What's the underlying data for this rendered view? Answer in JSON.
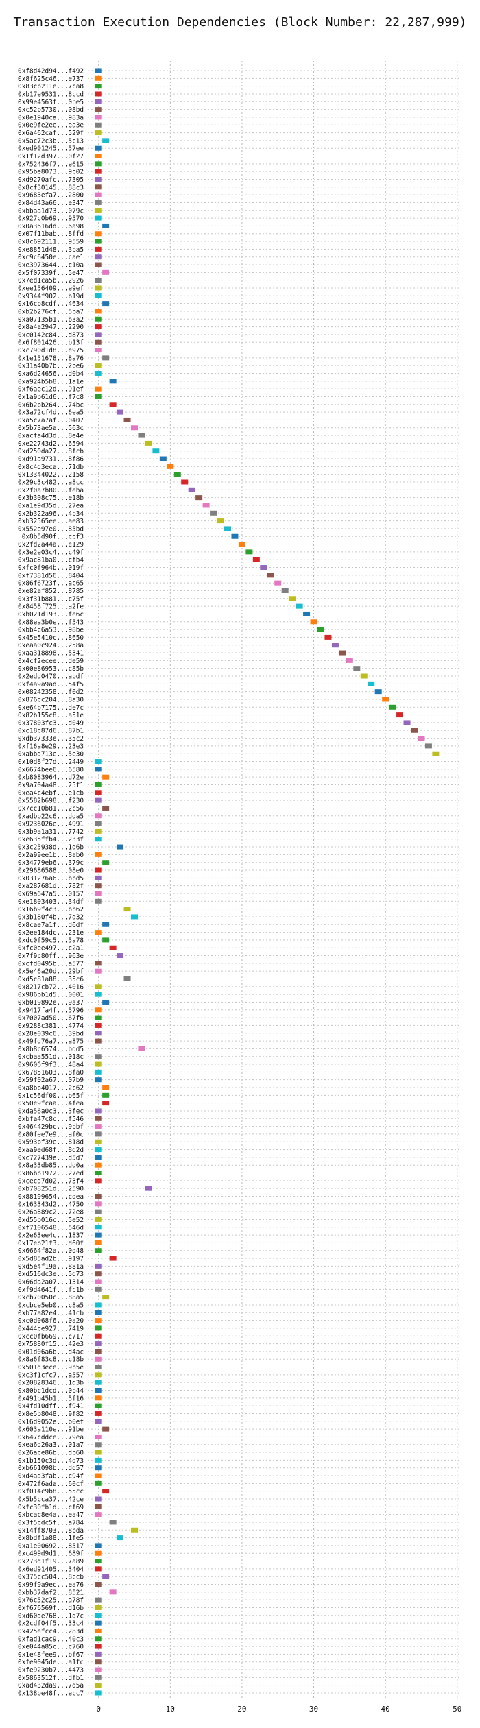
{
  "chart_data": {
    "type": "gantt",
    "title": "Transaction Execution Dependencies (Block Number: 22,287,999)",
    "xlabel": "",
    "ylabel": "",
    "xlim": [
      -1.5,
      50.5
    ],
    "xticks": [
      0,
      10,
      20,
      30,
      40,
      50
    ],
    "grid": true,
    "legend": "none",
    "colors": [
      "#1f77b4",
      "#ff7f0e",
      "#2ca02c",
      "#d62728",
      "#9467bd",
      "#8c564b",
      "#e377c2",
      "#7f7f7f",
      "#bcbd22",
      "#17becf"
    ],
    "transactions": [
      {
        "hash": "0xf8d42d94...f492",
        "start": 0
      },
      {
        "hash": "0x8f625c46...e737",
        "start": 0
      },
      {
        "hash": "0x83cb211e...7ca8",
        "start": 0
      },
      {
        "hash": "0xb17e9531...8ccd",
        "start": 0
      },
      {
        "hash": "0x99e4563f...0be5",
        "start": 0
      },
      {
        "hash": "0xc52b5730...08bd",
        "start": 0
      },
      {
        "hash": "0x0e1940ca...983a",
        "start": 0
      },
      {
        "hash": "0x0e9fe2ee...ea3e",
        "start": 0
      },
      {
        "hash": "0x6a462caf...529f",
        "start": 0
      },
      {
        "hash": "0x5ac72c3b...5c13",
        "start": 1
      },
      {
        "hash": "0xed901245...57ee",
        "start": 0
      },
      {
        "hash": "0x1f12d397...0f27",
        "start": 0
      },
      {
        "hash": "0x752436f7...e615",
        "start": 0
      },
      {
        "hash": "0x95be8073...9c02",
        "start": 0
      },
      {
        "hash": "0xd9270afc...7305",
        "start": 0
      },
      {
        "hash": "0x8cf30145...88c3",
        "start": 0
      },
      {
        "hash": "0x9683efa7...2800",
        "start": 0
      },
      {
        "hash": "0x84d43a66...e347",
        "start": 0
      },
      {
        "hash": "0xbbaa1d73...079c",
        "start": 0
      },
      {
        "hash": "0x927c0b69...9570",
        "start": 0
      },
      {
        "hash": "0x0a3616dd...6a98",
        "start": 1
      },
      {
        "hash": "0x07f11bab...8ffd",
        "start": 0
      },
      {
        "hash": "0x8c692111...9559",
        "start": 0
      },
      {
        "hash": "0xe8851d48...3ba5",
        "start": 0
      },
      {
        "hash": "0xc9c6450e...cae1",
        "start": 0
      },
      {
        "hash": "0xe3973644...c10a",
        "start": 0
      },
      {
        "hash": "0x5f07339f...5e47",
        "start": 1
      },
      {
        "hash": "0x7ed1ca5b...2926",
        "start": 0
      },
      {
        "hash": "0xee156409...e9ef",
        "start": 0
      },
      {
        "hash": "0x9344f902...b19d",
        "start": 0
      },
      {
        "hash": "0x16cb8cdf...4634",
        "start": 1
      },
      {
        "hash": "0xb2b276cf...5ba7",
        "start": 0
      },
      {
        "hash": "0xa07135b1...b3a2",
        "start": 0
      },
      {
        "hash": "0x8a4a2947...2290",
        "start": 0
      },
      {
        "hash": "0xc0142c84...d873",
        "start": 0
      },
      {
        "hash": "0x6f801426...b13f",
        "start": 0
      },
      {
        "hash": "0xc790d1d8...e975",
        "start": 0
      },
      {
        "hash": "0x1e151678...8a76",
        "start": 1
      },
      {
        "hash": "0x31a40b7b...2be6",
        "start": 0
      },
      {
        "hash": "0xa6d24656...d0b4",
        "start": 0
      },
      {
        "hash": "0xa924b5b8...1a1e",
        "start": 2
      },
      {
        "hash": "0xf6aec12d...91ef",
        "start": 0
      },
      {
        "hash": "0x1a9b61d6...f7c8",
        "start": 0
      },
      {
        "hash": "0x6b2bb264...74bc",
        "start": 2
      },
      {
        "hash": "0x3a72cf4d...6ea5",
        "start": 3
      },
      {
        "hash": "0xa5c7a7af...0407",
        "start": 4
      },
      {
        "hash": "0x5b73ae5a...563c",
        "start": 5
      },
      {
        "hash": "0xacfa4d3d...8e4e",
        "start": 6
      },
      {
        "hash": "0xe22743d2...6594",
        "start": 7
      },
      {
        "hash": "0xd250da27...8fcb",
        "start": 8
      },
      {
        "hash": "0xd91a9731...8f86",
        "start": 9
      },
      {
        "hash": "0x8c4d3eca...71db",
        "start": 10
      },
      {
        "hash": "0x13344022...2158",
        "start": 11
      },
      {
        "hash": "0x29c3c482...a8cc",
        "start": 12
      },
      {
        "hash": "0x2f0a7b80...feba",
        "start": 13
      },
      {
        "hash": "0x3b308c75...e18b",
        "start": 14
      },
      {
        "hash": "0xa1e9d35d...27ea",
        "start": 15
      },
      {
        "hash": "0x2b322a96...4b34",
        "start": 16
      },
      {
        "hash": "0xb32565ee...ae83",
        "start": 17
      },
      {
        "hash": "0x552e97e0...85bd",
        "start": 18
      },
      {
        "hash": "0x8b5d90f...ccf3",
        "start": 19
      },
      {
        "hash": "0x2fd2a44a...e129",
        "start": 20
      },
      {
        "hash": "0x3e2e03c4...c49f",
        "start": 21
      },
      {
        "hash": "0x9ac81ba0...cfb4",
        "start": 22
      },
      {
        "hash": "0xfc0f964b...019f",
        "start": 23
      },
      {
        "hash": "0xf7381d56...8404",
        "start": 24
      },
      {
        "hash": "0x86f6723f...ac65",
        "start": 25
      },
      {
        "hash": "0xe82af852...8785",
        "start": 26
      },
      {
        "hash": "0x3f31b881...c75f",
        "start": 27
      },
      {
        "hash": "0x8458f725...a2fe",
        "start": 28
      },
      {
        "hash": "0xb021d193...fe6c",
        "start": 29
      },
      {
        "hash": "0x88ea3b0e...f543",
        "start": 30
      },
      {
        "hash": "0xbb4c6a53...98be",
        "start": 31
      },
      {
        "hash": "0x45e5410c...8650",
        "start": 32
      },
      {
        "hash": "0xeaa0c924...258a",
        "start": 33
      },
      {
        "hash": "0xaa318898...5341",
        "start": 34
      },
      {
        "hash": "0x4cf2ecee...de59",
        "start": 35
      },
      {
        "hash": "0x00e86953...c85b",
        "start": 36
      },
      {
        "hash": "0x2edd0470...abdf",
        "start": 37
      },
      {
        "hash": "0xf4a9a9ad...54f5",
        "start": 38
      },
      {
        "hash": "0x08242358...f0d2",
        "start": 39
      },
      {
        "hash": "0x876cc204...8a30",
        "start": 40
      },
      {
        "hash": "0xe64b7175...de7c",
        "start": 41
      },
      {
        "hash": "0x82b155c8...a51e",
        "start": 42
      },
      {
        "hash": "0x37803fc3...d049",
        "start": 43
      },
      {
        "hash": "0xc18c87d6...87b1",
        "start": 44
      },
      {
        "hash": "0xdb37333e...35c2",
        "start": 45
      },
      {
        "hash": "0xf16a8e29...23e3",
        "start": 46
      },
      {
        "hash": "0xabbd713e...5e30",
        "start": 47
      },
      {
        "hash": "0x10d8f27d...2449",
        "start": 0
      },
      {
        "hash": "0x6674bee6...6580",
        "start": 0
      },
      {
        "hash": "0xb8083964...d72e",
        "start": 1
      },
      {
        "hash": "0x9a704a48...25f1",
        "start": 0
      },
      {
        "hash": "0xea4c4ebf...e1cb",
        "start": 0
      },
      {
        "hash": "0x5582b698...f230",
        "start": 0
      },
      {
        "hash": "0x7cc10b81...2c56",
        "start": 1
      },
      {
        "hash": "0xadbb22c6...dda5",
        "start": 0
      },
      {
        "hash": "0x9236026e...4991",
        "start": 0
      },
      {
        "hash": "0x3b9a1a31...7742",
        "start": 0
      },
      {
        "hash": "0xe635ffb4...233f",
        "start": 0
      },
      {
        "hash": "0x3c25938d...1d6b",
        "start": 3
      },
      {
        "hash": "0x2a99ee1b...8ab0",
        "start": 0
      },
      {
        "hash": "0x34779eb6...379c",
        "start": 1
      },
      {
        "hash": "0x29686588...08e0",
        "start": 0
      },
      {
        "hash": "0x031276a6...bbd5",
        "start": 0
      },
      {
        "hash": "0xa287681d...782f",
        "start": 0
      },
      {
        "hash": "0x69a647a5...0157",
        "start": 0
      },
      {
        "hash": "0xe1803403...34df",
        "start": 0
      },
      {
        "hash": "0x16b9f4c3...bb62",
        "start": 4
      },
      {
        "hash": "0x3b180f4b...7d32",
        "start": 5
      },
      {
        "hash": "0x8cae7a1f...d6df",
        "start": 1
      },
      {
        "hash": "0x2ee184dc...231e",
        "start": 0
      },
      {
        "hash": "0xdc0f59c5...5a78",
        "start": 1
      },
      {
        "hash": "0xfc0ee497...c2a1",
        "start": 2
      },
      {
        "hash": "0x7f9c80ff...963e",
        "start": 3
      },
      {
        "hash": "0xcfd0495b...a577",
        "start": 0
      },
      {
        "hash": "0x5e46a20d...29bf",
        "start": 0
      },
      {
        "hash": "0xd5c81a88...35c6",
        "start": 4
      },
      {
        "hash": "0x8217cb72...4016",
        "start": 0
      },
      {
        "hash": "0x986bb1d5...0001",
        "start": 0
      },
      {
        "hash": "0xb019892e...9a37",
        "start": 1
      },
      {
        "hash": "0x9417fa4f...5796",
        "start": 0
      },
      {
        "hash": "0x7007ad50...67f6",
        "start": 0
      },
      {
        "hash": "0x9288c381...4774",
        "start": 0
      },
      {
        "hash": "0x28e039c6...39bd",
        "start": 0
      },
      {
        "hash": "0x49fd76a7...a875",
        "start": 0
      },
      {
        "hash": "0x8b8c6574...bdd5",
        "start": 6
      },
      {
        "hash": "0xcbaa551d...018c",
        "start": 0
      },
      {
        "hash": "0x9606f9f3...48a4",
        "start": 0
      },
      {
        "hash": "0x67851603...8fa0",
        "start": 0
      },
      {
        "hash": "0x59f02a67...07b9",
        "start": 0
      },
      {
        "hash": "0xa8bb4017...2c62",
        "start": 1
      },
      {
        "hash": "0x1c56df00...b65f",
        "start": 1
      },
      {
        "hash": "0x50e9fcaa...4fea",
        "start": 1
      },
      {
        "hash": "0xda56a0c3...3fec",
        "start": 0
      },
      {
        "hash": "0xbfa47c8c...f546",
        "start": 0
      },
      {
        "hash": "0x464429bc...9bbf",
        "start": 0
      },
      {
        "hash": "0x80fee7e9...af0c",
        "start": 0
      },
      {
        "hash": "0x593bf39e...818d",
        "start": 0
      },
      {
        "hash": "0xaa9ed68f...8d2d",
        "start": 0
      },
      {
        "hash": "0xc727439e...d5d7",
        "start": 0
      },
      {
        "hash": "0x8a33db85...dd0a",
        "start": 0
      },
      {
        "hash": "0x86bb1972...27ed",
        "start": 0
      },
      {
        "hash": "0xcecd7d02...73f4",
        "start": 0
      },
      {
        "hash": "0xb708251d...2590",
        "start": 7
      },
      {
        "hash": "0x88199654...cdea",
        "start": 0
      },
      {
        "hash": "0x163343d2...4750",
        "start": 0
      },
      {
        "hash": "0x26a889c2...72e8",
        "start": 0
      },
      {
        "hash": "0xd55b016c...5e52",
        "start": 0
      },
      {
        "hash": "0xf7106548...546d",
        "start": 0
      },
      {
        "hash": "0x2e63ee4c...1837",
        "start": 0
      },
      {
        "hash": "0x17eb21f3...d60f",
        "start": 0
      },
      {
        "hash": "0x6664f82a...0d48",
        "start": 0
      },
      {
        "hash": "0x5d85ad2b...9197",
        "start": 2
      },
      {
        "hash": "0xd5e4f19a...881a",
        "start": 0
      },
      {
        "hash": "0xd516dc3e...5d73",
        "start": 0
      },
      {
        "hash": "0x66da2a07...1314",
        "start": 0
      },
      {
        "hash": "0xf9d4641f...fc1b",
        "start": 0
      },
      {
        "hash": "0xcb70050c...88a5",
        "start": 1
      },
      {
        "hash": "0xcbce5eb0...c8a5",
        "start": 0
      },
      {
        "hash": "0xb77a82e4...41cb",
        "start": 0
      },
      {
        "hash": "0xc0d068f6...0a20",
        "start": 0
      },
      {
        "hash": "0x444ce927...7419",
        "start": 0
      },
      {
        "hash": "0xcc0fb669...c717",
        "start": 0
      },
      {
        "hash": "0x75880f15...42e3",
        "start": 0
      },
      {
        "hash": "0x01d06a6b...d4ac",
        "start": 0
      },
      {
        "hash": "0x8a6f83c8...c18b",
        "start": 0
      },
      {
        "hash": "0x501d3ece...9b5e",
        "start": 0
      },
      {
        "hash": "0xc3f1cfc7...a557",
        "start": 0
      },
      {
        "hash": "0x20828346...1d3b",
        "start": 0
      },
      {
        "hash": "0x80bc1dcd...0b44",
        "start": 0
      },
      {
        "hash": "0x491b45b1...5f16",
        "start": 0
      },
      {
        "hash": "0x4fd10dff...f941",
        "start": 0
      },
      {
        "hash": "0x8e5b8048...9f82",
        "start": 0
      },
      {
        "hash": "0x16d9052e...b0ef",
        "start": 0
      },
      {
        "hash": "0x603a110e...91be",
        "start": 1
      },
      {
        "hash": "0x647cddce...79ea",
        "start": 0
      },
      {
        "hash": "0xea6d26a3...01a7",
        "start": 0
      },
      {
        "hash": "0x26ace86b...db60",
        "start": 0
      },
      {
        "hash": "0x1b150c3d...4d73",
        "start": 0
      },
      {
        "hash": "0xb661098b...dd57",
        "start": 0
      },
      {
        "hash": "0xd4ad3fab...c94f",
        "start": 0
      },
      {
        "hash": "0x472f6ada...60cf",
        "start": 0
      },
      {
        "hash": "0xf014c9b8...55cc",
        "start": 1
      },
      {
        "hash": "0x5b5cca37...42ce",
        "start": 0
      },
      {
        "hash": "0xfc30fb1d...cf69",
        "start": 0
      },
      {
        "hash": "0xbcac8e4a...ea47",
        "start": 0
      },
      {
        "hash": "0x3f5cdc5f...a784",
        "start": 2
      },
      {
        "hash": "0x14ff8703...8bda",
        "start": 5
      },
      {
        "hash": "0x8bdf1a88...1fe5",
        "start": 3
      },
      {
        "hash": "0xa1e00692...8517",
        "start": 0
      },
      {
        "hash": "0xc499d9d1...689f",
        "start": 0
      },
      {
        "hash": "0x273d1f19...7a89",
        "start": 0
      },
      {
        "hash": "0x6ed91405...3404",
        "start": 0
      },
      {
        "hash": "0x375cc504...8ccb",
        "start": 1
      },
      {
        "hash": "0x99f9a9ec...ea76",
        "start": 0
      },
      {
        "hash": "0xbb37daf2...8521",
        "start": 2
      },
      {
        "hash": "0x76c52c25...a78f",
        "start": 0
      },
      {
        "hash": "0xf676569f...d16b",
        "start": 0
      },
      {
        "hash": "0xd60de768...1d7c",
        "start": 0
      },
      {
        "hash": "0x2cdf04f5...33c4",
        "start": 0
      },
      {
        "hash": "0x425efcc4...283d",
        "start": 0
      },
      {
        "hash": "0xfad1cac9...40c3",
        "start": 0
      },
      {
        "hash": "0xe044a85c...c760",
        "start": 0
      },
      {
        "hash": "0x1e48fee9...bf67",
        "start": 0
      },
      {
        "hash": "0xfe9045de...a1fc",
        "start": 0
      },
      {
        "hash": "0xfe9230b7...4473",
        "start": 0
      },
      {
        "hash": "0x5863512f...dfb1",
        "start": 0
      },
      {
        "hash": "0xad432da9...7d5a",
        "start": 0
      },
      {
        "hash": "0x138be48f...ecc7",
        "start": 0
      }
    ]
  }
}
